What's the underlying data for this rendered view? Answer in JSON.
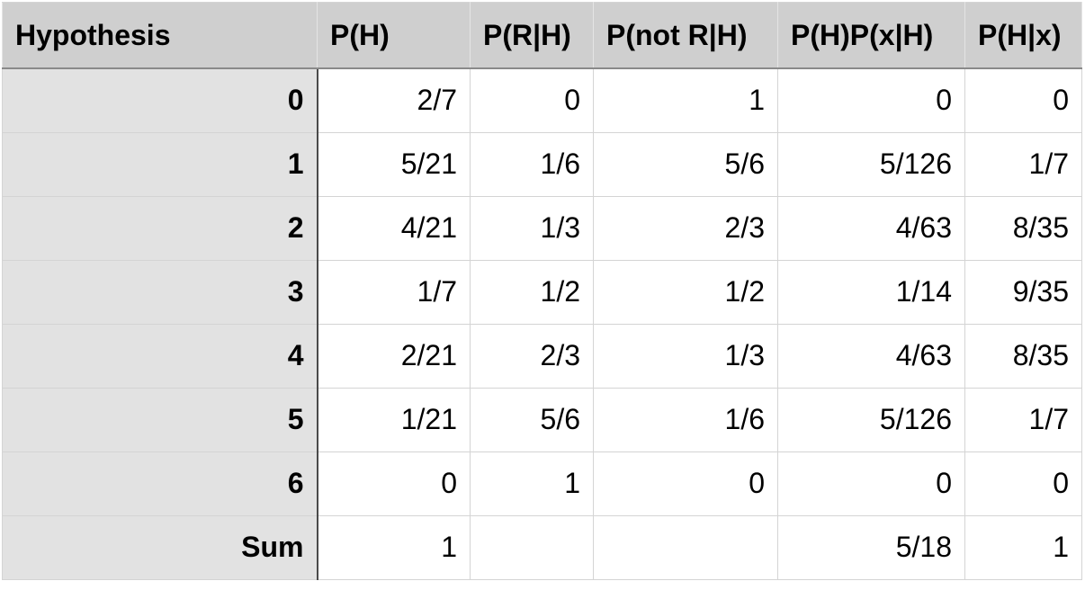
{
  "table": {
    "headers": [
      "Hypothesis",
      "P(H)",
      "P(R|H)",
      "P(not R|H)",
      "P(H)P(x|H)",
      "P(H|x)"
    ],
    "rows": [
      [
        "0",
        "2/7",
        "0",
        "1",
        "0",
        "0"
      ],
      [
        "1",
        "5/21",
        "1/6",
        "5/6",
        "5/126",
        "1/7"
      ],
      [
        "2",
        "4/21",
        "1/3",
        "2/3",
        "4/63",
        "8/35"
      ],
      [
        "3",
        "1/7",
        "1/2",
        "1/2",
        "1/14",
        "9/35"
      ],
      [
        "4",
        "2/21",
        "2/3",
        "1/3",
        "4/63",
        "8/35"
      ],
      [
        "5",
        "1/21",
        "5/6",
        "1/6",
        "5/126",
        "1/7"
      ],
      [
        "6",
        "0",
        "1",
        "0",
        "0",
        "0"
      ],
      [
        "Sum",
        "1",
        "",
        "",
        "5/18",
        "1"
      ]
    ]
  },
  "colors": {
    "header_bg": "#cfcfcf",
    "row_header_bg": "#e2e2e2",
    "cell_bg": "#ffffff",
    "grid_line": "#d4d4d4"
  }
}
